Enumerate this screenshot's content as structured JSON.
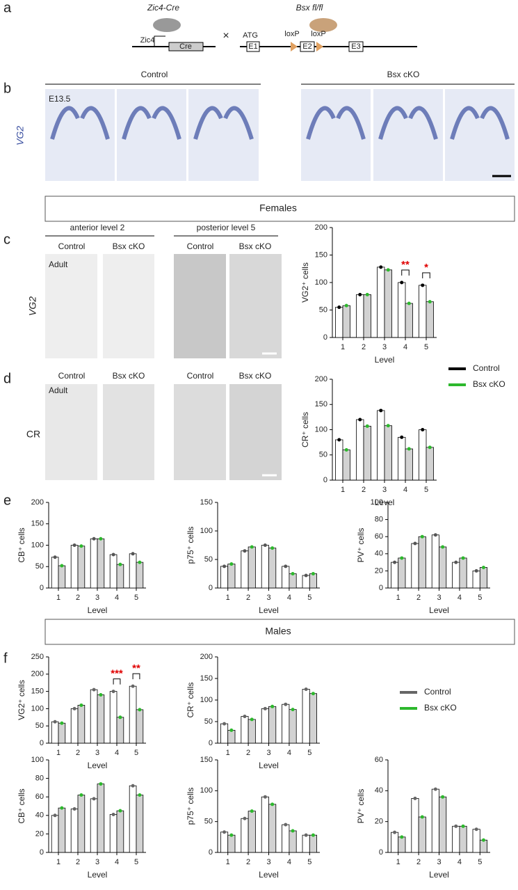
{
  "panel_labels": [
    "a",
    "b",
    "c",
    "d",
    "e",
    "f"
  ],
  "diagram": {
    "left_title": "Zic4-Cre",
    "promoter": "Zic4",
    "cre": "Cre",
    "cross": "×",
    "right_title": "Bsx fl/fl",
    "atg": "ATG",
    "e1": "E1",
    "loxp1": "loxP",
    "e2": "E2",
    "loxp2": "loxP",
    "e3": "E3"
  },
  "panel_b": {
    "control": "Control",
    "cko": "Bsx cKO",
    "stage": "E13.5",
    "marker": "VG2"
  },
  "sections": {
    "females": "Females",
    "males": "Males"
  },
  "panel_c": {
    "anterior": "anterior level 2",
    "posterior": "posterior level 5",
    "columns": [
      "Control",
      "Bsx cKO",
      "Control",
      "Bsx cKO"
    ],
    "age": "Adult",
    "marker": "VG2"
  },
  "panel_d": {
    "columns": [
      "Control",
      "Bsx cKO",
      "Control",
      "Bsx cKO"
    ],
    "age": "Adult",
    "marker": "CR"
  },
  "chart_data": [
    {
      "type": "bar",
      "ylabel": "VG2⁺ cells",
      "xlabel": "Level",
      "categories": [
        "1",
        "2",
        "3",
        "4",
        "5"
      ],
      "ylim": [
        0,
        200
      ],
      "yticks": [
        0,
        50,
        100,
        150,
        200
      ],
      "series": [
        {
          "color": "#000000",
          "values": [
            55,
            78,
            128,
            100,
            95
          ]
        },
        {
          "color": "#2db82d",
          "values": [
            58,
            78,
            123,
            62,
            65
          ]
        }
      ],
      "annotations": [
        {
          "text": "**",
          "category": "4"
        },
        {
          "text": "*",
          "category": "5"
        }
      ]
    },
    {
      "type": "bar",
      "ylabel": "CR⁺ cells",
      "xlabel": "Level",
      "categories": [
        "1",
        "2",
        "3",
        "4",
        "5"
      ],
      "ylim": [
        0,
        200
      ],
      "yticks": [
        0,
        50,
        100,
        150,
        200
      ],
      "series": [
        {
          "name": "Control",
          "color": "#000000",
          "values": [
            80,
            120,
            138,
            85,
            100
          ]
        },
        {
          "name": "Bsx cKO",
          "color": "#2db82d",
          "values": [
            60,
            107,
            108,
            62,
            65
          ]
        }
      ]
    },
    {
      "type": "bar",
      "ylabel": "CB⁺ cells",
      "xlabel": "Level",
      "categories": [
        "1",
        "2",
        "3",
        "4",
        "5"
      ],
      "ylim": [
        0,
        200
      ],
      "yticks": [
        0,
        50,
        100,
        150,
        200
      ],
      "series": [
        {
          "color": "#555555",
          "values": [
            72,
            100,
            115,
            78,
            80
          ]
        },
        {
          "color": "#2db82d",
          "values": [
            52,
            98,
            115,
            55,
            60
          ]
        }
      ]
    },
    {
      "type": "bar",
      "ylabel": "p75⁺ cells",
      "xlabel": "Level",
      "categories": [
        "1",
        "2",
        "3",
        "4",
        "5"
      ],
      "ylim": [
        0,
        150
      ],
      "yticks": [
        0,
        50,
        100,
        150
      ],
      "series": [
        {
          "color": "#555555",
          "values": [
            38,
            65,
            75,
            38,
            22
          ]
        },
        {
          "color": "#2db82d",
          "values": [
            42,
            72,
            70,
            25,
            25
          ]
        }
      ]
    },
    {
      "type": "bar",
      "ylabel": "PV⁺ cells",
      "xlabel": "Level",
      "categories": [
        "1",
        "2",
        "3",
        "4",
        "5"
      ],
      "ylim": [
        0,
        100
      ],
      "yticks": [
        0,
        20,
        40,
        60,
        80,
        100
      ],
      "series": [
        {
          "color": "#555555",
          "values": [
            30,
            52,
            62,
            30,
            20
          ]
        },
        {
          "color": "#2db82d",
          "values": [
            35,
            60,
            48,
            35,
            24
          ]
        }
      ]
    },
    {
      "type": "bar",
      "ylabel": "VG2⁺ cells",
      "xlabel": "Level",
      "categories": [
        "1",
        "2",
        "3",
        "4",
        "5"
      ],
      "ylim": [
        0,
        250
      ],
      "yticks": [
        0,
        50,
        100,
        150,
        200,
        250
      ],
      "series": [
        {
          "color": "#666666",
          "values": [
            62,
            100,
            155,
            150,
            165
          ]
        },
        {
          "color": "#2db82d",
          "values": [
            58,
            110,
            140,
            75,
            97
          ]
        }
      ],
      "annotations": [
        {
          "text": "***",
          "category": "4"
        },
        {
          "text": "**",
          "category": "5"
        }
      ]
    },
    {
      "type": "bar",
      "ylabel": "CR⁺ cells",
      "xlabel": "Level",
      "categories": [
        "1",
        "2",
        "3",
        "4",
        "5"
      ],
      "ylim": [
        0,
        200
      ],
      "yticks": [
        0,
        50,
        100,
        150,
        200
      ],
      "series": [
        {
          "name": "Control",
          "color": "#666666",
          "values": [
            45,
            62,
            80,
            90,
            125
          ]
        },
        {
          "name": "Bsx cKO",
          "color": "#2db82d",
          "values": [
            30,
            55,
            85,
            78,
            115
          ]
        }
      ]
    },
    {
      "type": "bar",
      "ylabel": "CB⁺ cells",
      "xlabel": "Level",
      "categories": [
        "1",
        "2",
        "3",
        "4",
        "5"
      ],
      "ylim": [
        0,
        100
      ],
      "yticks": [
        0,
        20,
        40,
        60,
        80,
        100
      ],
      "series": [
        {
          "color": "#666666",
          "values": [
            40,
            47,
            58,
            41,
            72
          ]
        },
        {
          "color": "#2db82d",
          "values": [
            48,
            62,
            74,
            45,
            62
          ]
        }
      ]
    },
    {
      "type": "bar",
      "ylabel": "p75⁺ cells",
      "xlabel": "Level",
      "categories": [
        "1",
        "2",
        "3",
        "4",
        "5"
      ],
      "ylim": [
        0,
        150
      ],
      "yticks": [
        0,
        50,
        100,
        150
      ],
      "series": [
        {
          "color": "#666666",
          "values": [
            33,
            55,
            90,
            45,
            28
          ]
        },
        {
          "color": "#2db82d",
          "values": [
            28,
            67,
            78,
            35,
            28
          ]
        }
      ]
    },
    {
      "type": "bar",
      "ylabel": "PV⁺ cells",
      "xlabel": "Level",
      "categories": [
        "1",
        "2",
        "3",
        "4",
        "5"
      ],
      "ylim": [
        0,
        60
      ],
      "yticks": [
        0,
        20,
        40,
        60
      ],
      "series": [
        {
          "color": "#666666",
          "values": [
            13,
            35,
            41,
            17,
            15
          ]
        },
        {
          "color": "#2db82d",
          "values": [
            10,
            23,
            36,
            17,
            8
          ]
        }
      ]
    }
  ]
}
